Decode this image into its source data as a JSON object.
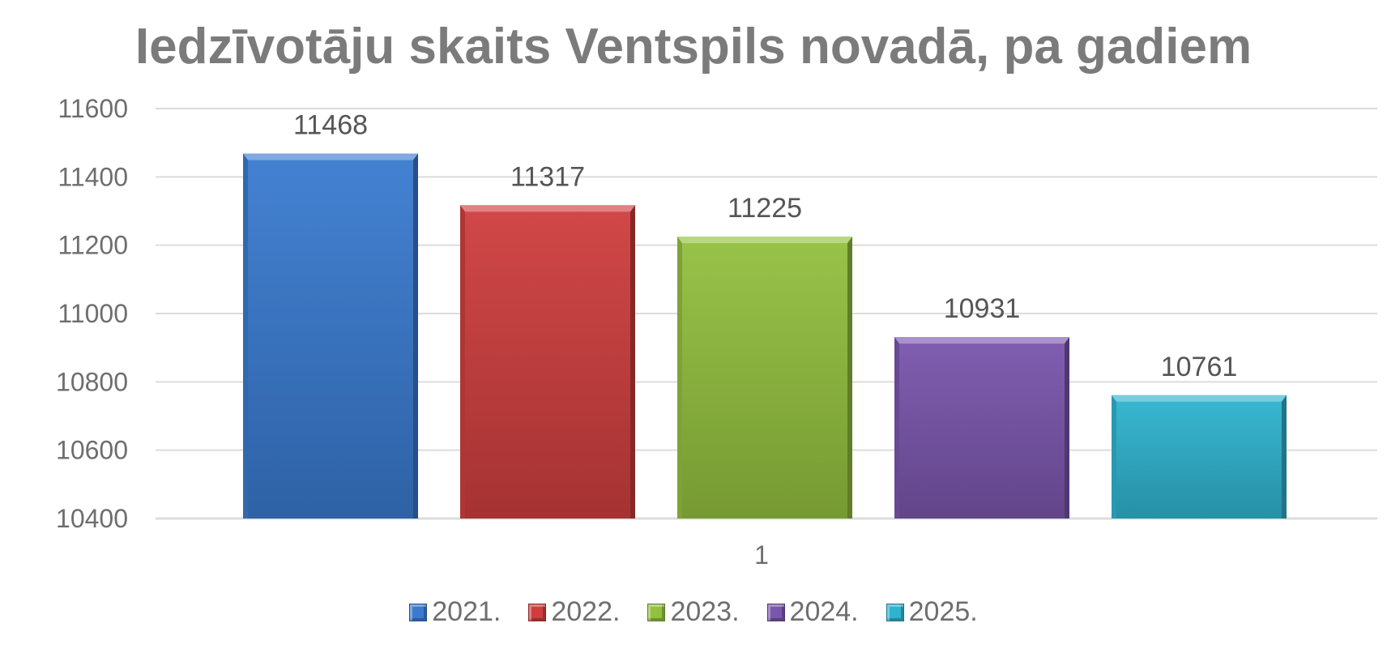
{
  "chart_data": {
    "type": "bar",
    "title": "Iedzīvotāju skaits Ventspils novadā, pa gadiem",
    "categories": [
      "1"
    ],
    "series": [
      {
        "name": "2021.",
        "values": [
          11468
        ],
        "color": "#3a7bd0"
      },
      {
        "name": "2022.",
        "values": [
          11317
        ],
        "color": "#cf3e3e"
      },
      {
        "name": "2023.",
        "values": [
          11225
        ],
        "color": "#93c03f"
      },
      {
        "name": "2024.",
        "values": [
          10931
        ],
        "color": "#7a56ad"
      },
      {
        "name": "2025.",
        "values": [
          10761
        ],
        "color": "#2fb4d0"
      }
    ],
    "ylim": [
      10400,
      11600
    ],
    "yticks": [
      "10400",
      "10600",
      "10800",
      "11000",
      "11200",
      "11400",
      "11600"
    ],
    "grid": true,
    "legend_position": "bottom",
    "data_labels": true
  }
}
